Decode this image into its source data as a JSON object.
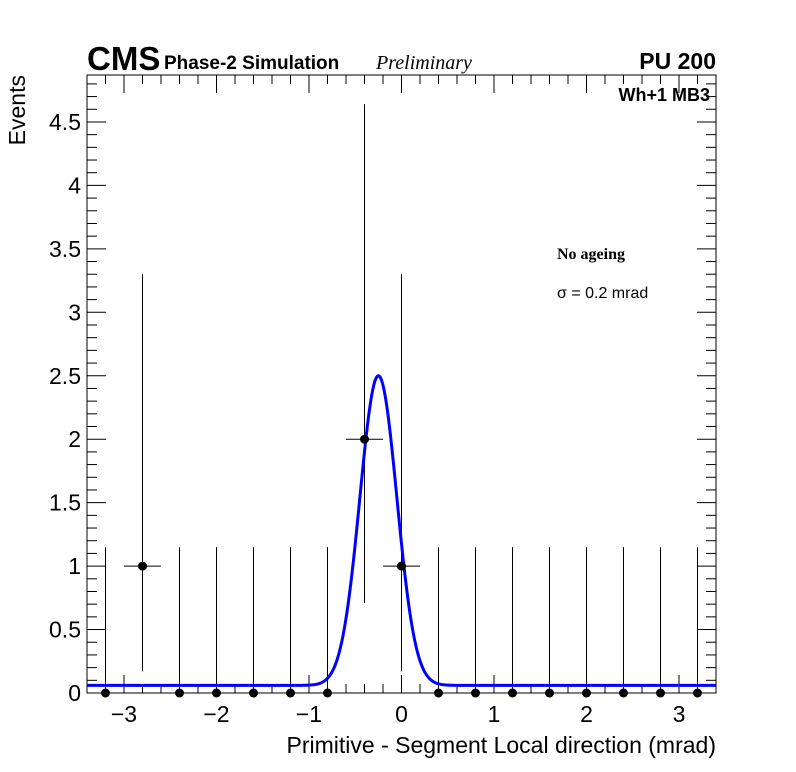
{
  "header": {
    "experiment": "CMS",
    "sim_label": "Phase-2 Simulation",
    "status": "Preliminary",
    "pileup": "PU 200"
  },
  "chart_data": {
    "type": "scatter",
    "subtitle": "Wh+1 MB3",
    "xlabel": "Primitive - Segment Local direction (mrad)",
    "ylabel": "Events",
    "xlim": [
      -3.4,
      3.4
    ],
    "ylim": [
      0,
      4.87
    ],
    "x_ticks": [
      -3,
      -2,
      -1,
      0,
      1,
      2,
      3
    ],
    "x_tick_labels": [
      "−3",
      "−2",
      "−1",
      "0",
      "1",
      "2",
      "3"
    ],
    "y_ticks": [
      0,
      0.5,
      1,
      1.5,
      2,
      2.5,
      3,
      3.5,
      4,
      4.5
    ],
    "y_tick_labels": [
      "0",
      "0.5",
      "1",
      "1.5",
      "2",
      "2.5",
      "3",
      "3.5",
      "4",
      "4.5"
    ],
    "grid": false,
    "annotations": {
      "ageing": "No ageing",
      "sigma": "σ = 0.2 mrad"
    },
    "points": {
      "x": [
        -3.2,
        -2.8,
        -2.4,
        -2.0,
        -1.6,
        -1.2,
        -0.8,
        -0.4,
        0.0,
        0.4,
        0.8,
        1.2,
        1.6,
        2.0,
        2.4,
        2.8,
        3.2
      ],
      "y": [
        0,
        1,
        0,
        0,
        0,
        0,
        0,
        2,
        1,
        0,
        0,
        0,
        0,
        0,
        0,
        0,
        0
      ],
      "x_err": 0.2,
      "y_err_up": [
        1.15,
        2.3,
        1.15,
        1.15,
        1.15,
        1.15,
        1.15,
        2.64,
        2.3,
        1.15,
        1.15,
        1.15,
        1.15,
        1.15,
        1.15,
        1.15,
        1.15
      ],
      "y_err_down": [
        0,
        0.83,
        0,
        0,
        0,
        0,
        0,
        1.29,
        0.83,
        0,
        0,
        0,
        0,
        0,
        0,
        0,
        0
      ],
      "color": "#000000"
    },
    "fit": {
      "function": "gaussian + constant",
      "amplitude": 2.44,
      "mean": -0.25,
      "sigma": 0.2,
      "constant": 0.06,
      "color": "#0000ff"
    }
  }
}
